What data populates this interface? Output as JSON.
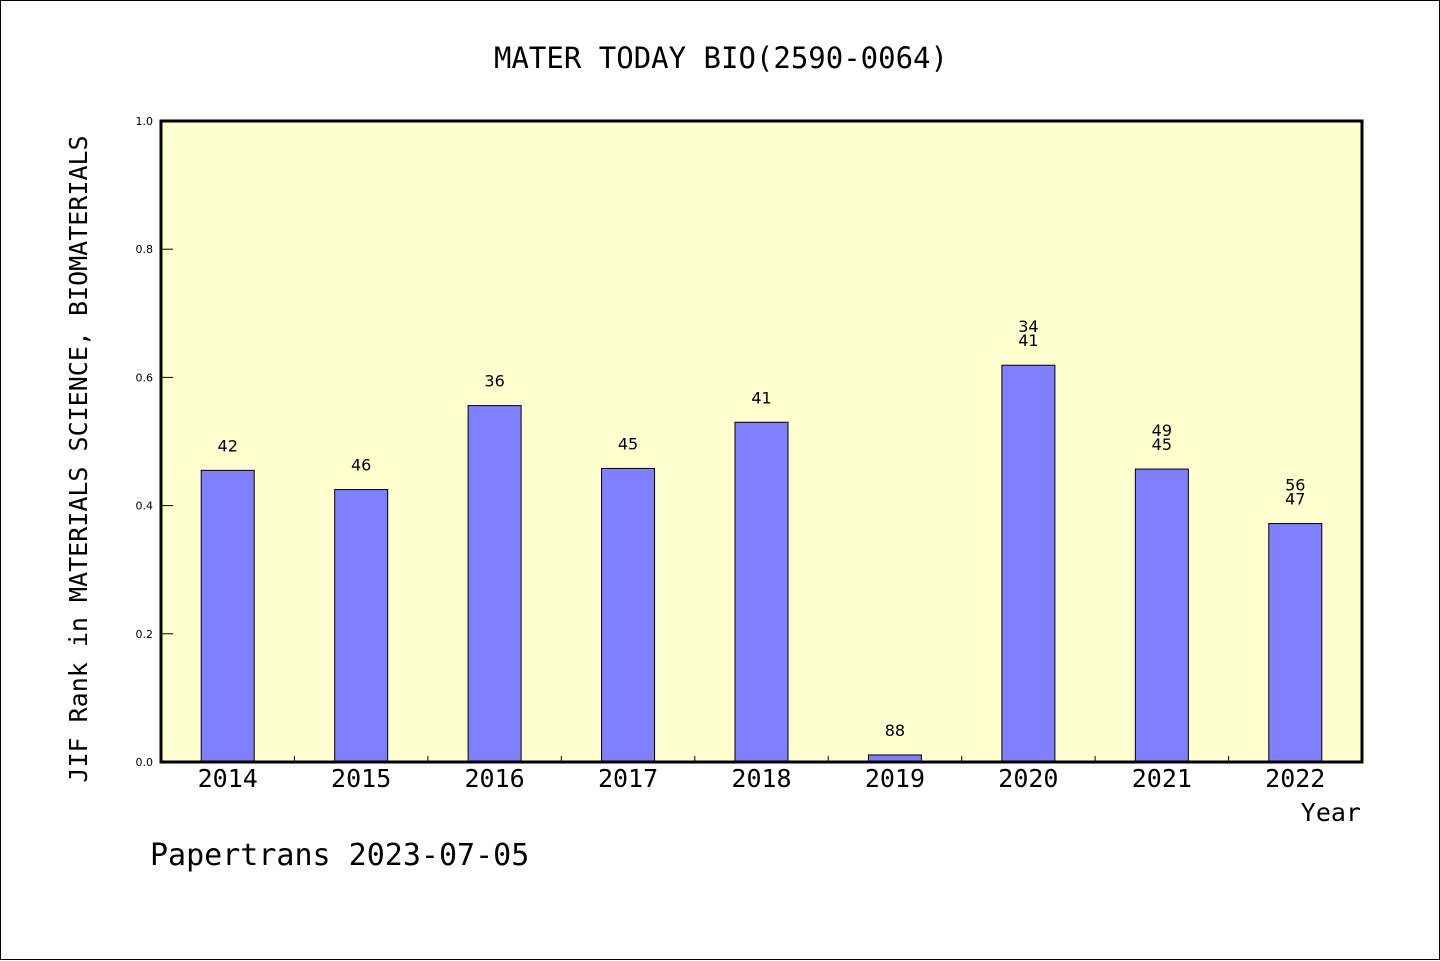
{
  "chart_data": {
    "type": "bar",
    "title": "MATER TODAY BIO(2590-0064)",
    "xlabel": "Year",
    "ylabel": "JIF Rank in MATERIALS SCIENCE, BIOMATERIALS",
    "footer": "Papertrans 2023-07-05",
    "categories": [
      "2014",
      "2015",
      "2016",
      "2017",
      "2018",
      "2019",
      "2020",
      "2021",
      "2022"
    ],
    "values": [
      0.455,
      0.425,
      0.556,
      0.458,
      0.53,
      0.011,
      0.619,
      0.457,
      0.372
    ],
    "labels": [
      [
        "42"
      ],
      [
        "46"
      ],
      [
        "36"
      ],
      [
        "45"
      ],
      [
        "41"
      ],
      [
        "88"
      ],
      [
        "34",
        "41"
      ],
      [
        "49",
        "45"
      ],
      [
        "56",
        "47"
      ]
    ],
    "ylim": [
      0,
      1.0
    ],
    "yticks": [
      "0.0",
      "0.2",
      "0.4",
      "0.6",
      "0.8",
      "1.0"
    ],
    "colors": {
      "bar": "#8080ff",
      "plot_background": "#ffffd0",
      "axis": "#000000"
    }
  }
}
